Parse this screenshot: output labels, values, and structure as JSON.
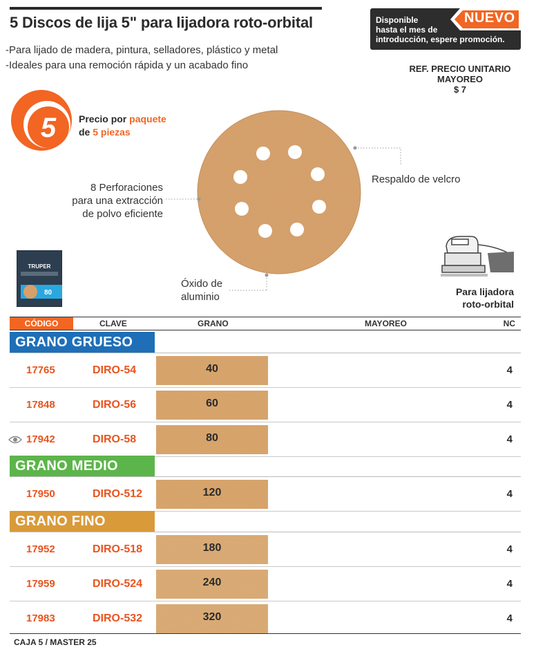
{
  "header": {
    "title": "5 Discos de lija 5\" para lijadora roto-orbital",
    "bullets": [
      "-Para lijado de madera, pintura, selladores, plástico y metal",
      "-Ideales para una remoción rápida y un acabado fino"
    ]
  },
  "promo": {
    "line1": "Disponible",
    "line2": "hasta el mes de",
    "line3": "introducción, espere promoción.",
    "badge": "NUEVO"
  },
  "ref_price": {
    "line1": "REF. PRECIO UNITARIO",
    "line2": "MAYOREO",
    "line3": "$ 7"
  },
  "pack": {
    "number": "5",
    "label_a": "Precio por ",
    "label_b": "paquete",
    "label_c": "de ",
    "label_d": "5 piezas"
  },
  "callouts": {
    "perforaciones": [
      "8 Perforaciones",
      "para una extracción",
      "de polvo eficiente"
    ],
    "velcro": "Respaldo de velcro",
    "oxido": [
      "Óxido de",
      "aluminio"
    ]
  },
  "product_thumb": {
    "brand": "TRUPER",
    "grit": "80"
  },
  "sander": {
    "line1": "Para lijadora",
    "line2": "roto-orbital"
  },
  "table": {
    "headers": {
      "codigo": "CÓDIGO",
      "clave": "CLAVE",
      "grano": "GRANO",
      "mayoreo": "MAYOREO",
      "nc": "NC"
    },
    "sections": [
      {
        "name": "GRANO GRUESO",
        "color": "#1e6fb8",
        "rows": [
          {
            "codigo": "17765",
            "clave": "DIRO-54",
            "grano": "40",
            "nc": "4"
          },
          {
            "codigo": "17848",
            "clave": "DIRO-56",
            "grano": "60",
            "nc": "4"
          },
          {
            "codigo": "17942",
            "clave": "DIRO-58",
            "grano": "80",
            "nc": "4"
          }
        ]
      },
      {
        "name": "GRANO MEDIO",
        "color": "#5cb54a",
        "rows": [
          {
            "codigo": "17950",
            "clave": "DIRO-512",
            "grano": "120",
            "nc": "4"
          }
        ]
      },
      {
        "name": "GRANO FINO",
        "color": "#d99a3a",
        "rows": [
          {
            "codigo": "17952",
            "clave": "DIRO-518",
            "grano": "180",
            "nc": "4"
          },
          {
            "codigo": "17959",
            "clave": "DIRO-524",
            "grano": "240",
            "nc": "4"
          },
          {
            "codigo": "17983",
            "clave": "DIRO-532",
            "grano": "320",
            "nc": "4"
          }
        ]
      }
    ]
  },
  "footer": "CAJA 5 / MASTER 25",
  "colors": {
    "accent": "#f26522",
    "sandpaper": "#d9a46a"
  }
}
